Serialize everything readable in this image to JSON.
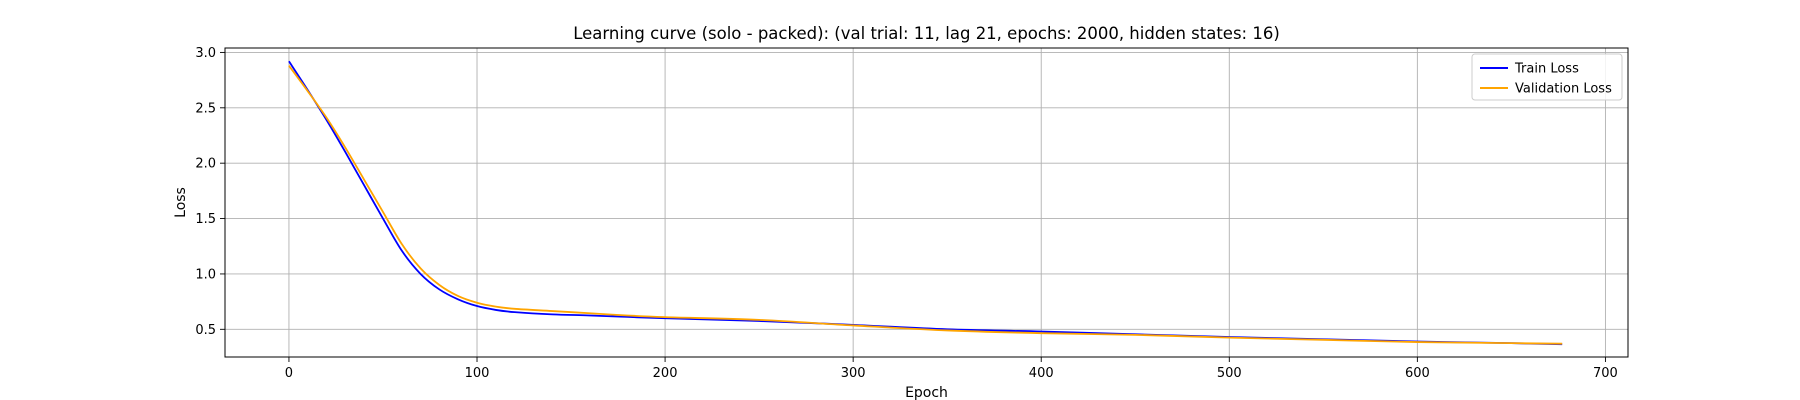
{
  "chart_data": {
    "type": "line",
    "title": "Learning curve (solo - packed): (val trial: 11, lag 21, epochs: 2000, hidden states: 16)",
    "xlabel": "Epoch",
    "ylabel": "Loss",
    "xlim": [
      -34,
      712
    ],
    "ylim": [
      0.25,
      3.04
    ],
    "xticks": [
      0,
      100,
      200,
      300,
      400,
      500,
      600,
      700
    ],
    "yticks": [
      0.5,
      1.0,
      1.5,
      2.0,
      2.5,
      3.0
    ],
    "grid": true,
    "legend_position": "top-right",
    "series": [
      {
        "name": "Train Loss",
        "color": "#0000ff",
        "x": [
          0,
          10,
          20,
          30,
          40,
          50,
          60,
          70,
          80,
          90,
          100,
          110,
          120,
          140,
          160,
          180,
          200,
          250,
          300,
          350,
          400,
          450,
          500,
          550,
          600,
          650,
          677
        ],
        "y": [
          2.92,
          2.66,
          2.39,
          2.1,
          1.8,
          1.5,
          1.21,
          1.0,
          0.86,
          0.77,
          0.71,
          0.675,
          0.655,
          0.635,
          0.625,
          0.612,
          0.6,
          0.575,
          0.54,
          0.5,
          0.48,
          0.455,
          0.43,
          0.41,
          0.39,
          0.375,
          0.365
        ]
      },
      {
        "name": "Validation Loss",
        "color": "#ffa500",
        "x": [
          0,
          10,
          20,
          30,
          40,
          50,
          60,
          70,
          80,
          90,
          100,
          110,
          120,
          140,
          160,
          180,
          200,
          250,
          300,
          350,
          400,
          450,
          500,
          550,
          600,
          650,
          677
        ],
        "y": [
          2.88,
          2.65,
          2.41,
          2.14,
          1.85,
          1.56,
          1.27,
          1.05,
          0.9,
          0.8,
          0.74,
          0.705,
          0.685,
          0.665,
          0.645,
          0.625,
          0.61,
          0.585,
          0.535,
          0.49,
          0.465,
          0.45,
          0.425,
          0.405,
          0.385,
          0.375,
          0.37
        ]
      }
    ]
  }
}
